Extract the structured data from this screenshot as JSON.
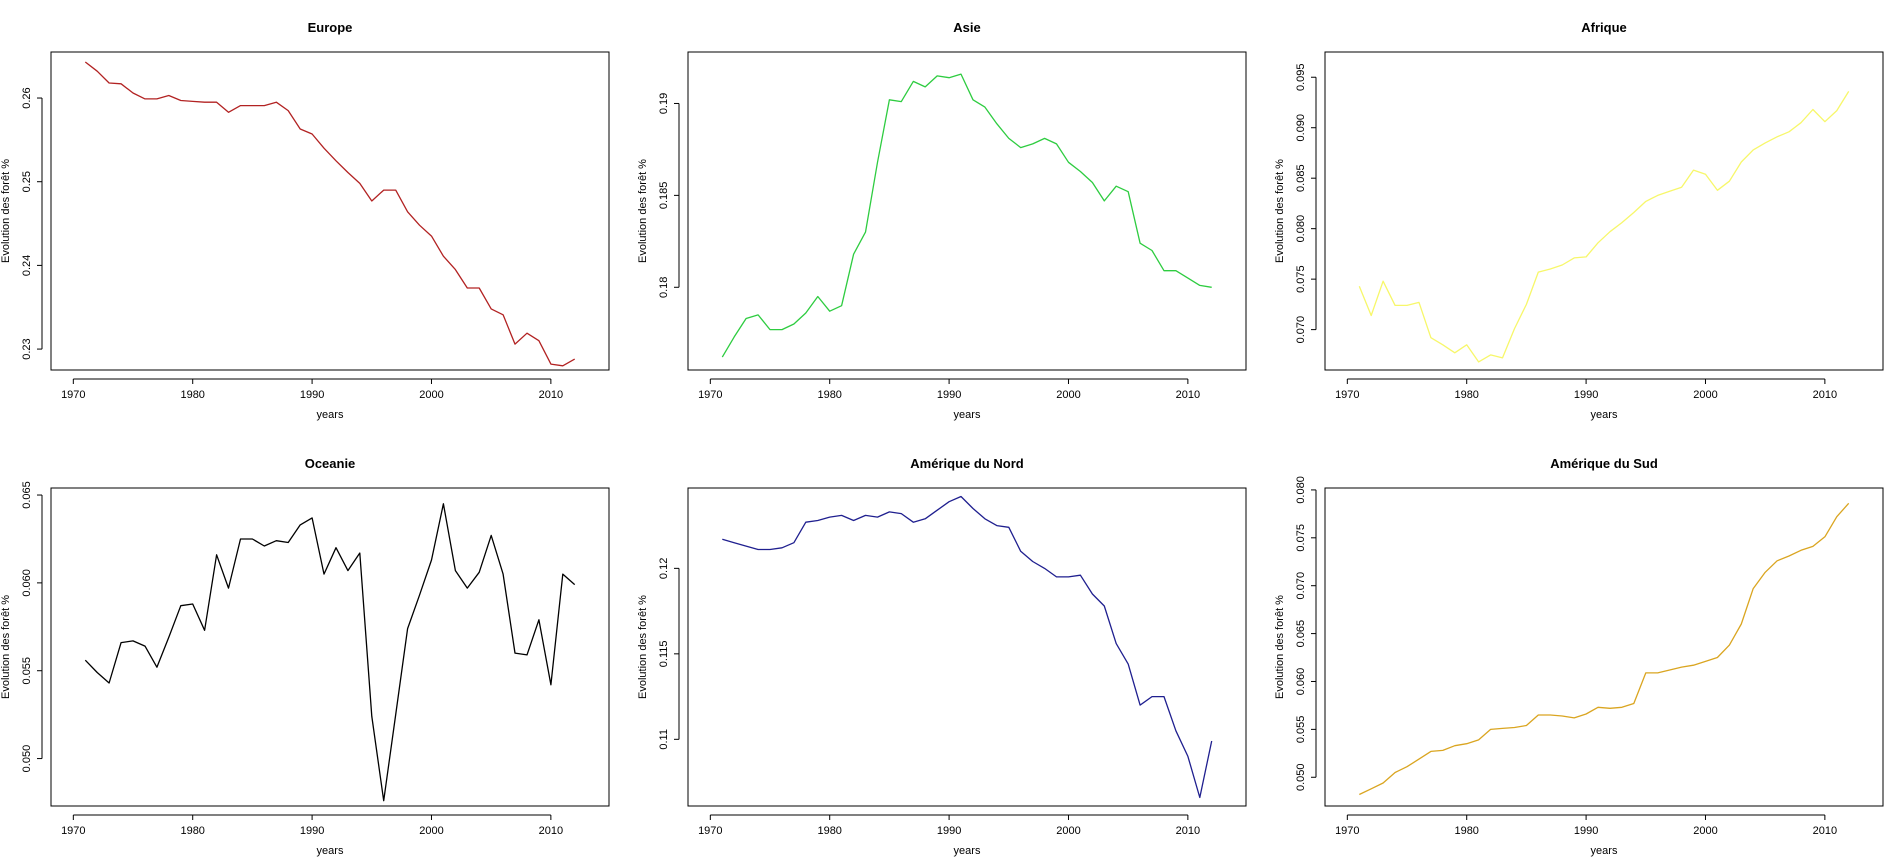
{
  "chart_data": [
    {
      "type": "line",
      "title": "Europe",
      "xlabel": "years",
      "ylabel": "Evolution des forêt %",
      "color": "#b22222",
      "xlim": [
        1970,
        2013
      ],
      "ylim": [
        0.2275,
        0.2655
      ],
      "x_ticks": [
        1970,
        1980,
        1990,
        2000,
        2010
      ],
      "y_ticks": [
        0.23,
        0.24,
        0.25,
        0.26
      ],
      "series": [
        {
          "x": [
            1971,
            1972,
            1973,
            1974,
            1975,
            1976,
            1977,
            1978,
            1979,
            1980,
            1981,
            1982,
            1983,
            1984,
            1985,
            1986,
            1987,
            1988,
            1989,
            1990,
            1991,
            1992,
            1993,
            1994,
            1995,
            1996,
            1997,
            1998,
            1999,
            2000,
            2001,
            2002,
            2003,
            2004,
            2005,
            2006,
            2007,
            2008,
            2009,
            2010,
            2011,
            2012
          ],
          "y": [
            0.2643,
            0.2632,
            0.2618,
            0.2617,
            0.2606,
            0.2599,
            0.2599,
            0.2603,
            0.2597,
            0.2596,
            0.2595,
            0.2595,
            0.2583,
            0.2591,
            0.2591,
            0.2591,
            0.2595,
            0.2585,
            0.2563,
            0.2557,
            0.254,
            0.2525,
            0.2511,
            0.2498,
            0.2477,
            0.249,
            0.249,
            0.2464,
            0.2448,
            0.2435,
            0.2411,
            0.2395,
            0.2373,
            0.2373,
            0.2348,
            0.2341,
            0.2306,
            0.2319,
            0.231,
            0.2282,
            0.228,
            0.2288
          ]
        }
      ]
    },
    {
      "type": "line",
      "title": "Asie",
      "xlabel": "years",
      "ylabel": "Evolution des forêt %",
      "color": "#2ecc40",
      "xlim": [
        1970,
        2013
      ],
      "ylim": [
        0.1755,
        0.1928
      ],
      "x_ticks": [
        1970,
        1980,
        1990,
        2000,
        2010
      ],
      "y_ticks": [
        0.18,
        0.185,
        0.19
      ],
      "series": [
        {
          "x": [
            1971,
            1972,
            1973,
            1974,
            1975,
            1976,
            1977,
            1978,
            1979,
            1980,
            1981,
            1982,
            1983,
            1984,
            1985,
            1986,
            1987,
            1988,
            1989,
            1990,
            1991,
            1992,
            1993,
            1994,
            1995,
            1996,
            1997,
            1998,
            1999,
            2000,
            2001,
            2002,
            2003,
            2004,
            2005,
            2006,
            2007,
            2008,
            2009,
            2010,
            2011,
            2012
          ],
          "y": [
            0.1762,
            0.1773,
            0.1783,
            0.1785,
            0.1777,
            0.1777,
            0.178,
            0.1786,
            0.1795,
            0.1787,
            0.179,
            0.1818,
            0.183,
            0.1868,
            0.1902,
            0.1901,
            0.1912,
            0.1909,
            0.1915,
            0.1914,
            0.1916,
            0.1902,
            0.1898,
            0.1889,
            0.1881,
            0.1876,
            0.1878,
            0.1881,
            0.1878,
            0.1868,
            0.1863,
            0.1857,
            0.1847,
            0.1855,
            0.1852,
            0.1824,
            0.182,
            0.1809,
            0.1809,
            0.1805,
            0.1801,
            0.18
          ]
        }
      ]
    },
    {
      "type": "line",
      "title": "Afrique",
      "xlabel": "years",
      "ylabel": "Evolution des forêt %",
      "color": "#f7f76a",
      "xlim": [
        1970,
        2013
      ],
      "ylim": [
        0.066,
        0.0975
      ],
      "x_ticks": [
        1970,
        1980,
        1990,
        2000,
        2010
      ],
      "y_ticks": [
        0.07,
        0.075,
        0.08,
        0.085,
        0.09,
        0.095
      ],
      "series": [
        {
          "x": [
            1971,
            1972,
            1973,
            1974,
            1975,
            1976,
            1977,
            1978,
            1979,
            1980,
            1981,
            1982,
            1983,
            1984,
            1985,
            1986,
            1987,
            1988,
            1989,
            1990,
            1991,
            1992,
            1993,
            1994,
            1995,
            1996,
            1997,
            1998,
            1999,
            2000,
            2001,
            2002,
            2003,
            2004,
            2005,
            2006,
            2007,
            2008,
            2009,
            2010,
            2011,
            2012
          ],
          "y": [
            0.0743,
            0.0714,
            0.0748,
            0.0724,
            0.0724,
            0.0727,
            0.0692,
            0.0685,
            0.0677,
            0.0685,
            0.0668,
            0.0675,
            0.0672,
            0.0701,
            0.0725,
            0.0757,
            0.076,
            0.0764,
            0.0771,
            0.0772,
            0.0786,
            0.0797,
            0.0806,
            0.0816,
            0.0827,
            0.0833,
            0.0837,
            0.0841,
            0.0858,
            0.0854,
            0.0838,
            0.0847,
            0.0866,
            0.0878,
            0.0885,
            0.0891,
            0.0896,
            0.0905,
            0.0918,
            0.0906,
            0.0917,
            0.0936
          ]
        }
      ]
    },
    {
      "type": "line",
      "title": "Oceanie",
      "xlabel": "years",
      "ylabel": "Evolution des forêt %",
      "color": "#000000",
      "xlim": [
        1970,
        2013
      ],
      "ylim": [
        0.0473,
        0.0654
      ],
      "x_ticks": [
        1970,
        1980,
        1990,
        2000,
        2010
      ],
      "y_ticks": [
        0.05,
        0.055,
        0.06,
        0.065
      ],
      "series": [
        {
          "x": [
            1971,
            1972,
            1973,
            1974,
            1975,
            1976,
            1977,
            1978,
            1979,
            1980,
            1981,
            1982,
            1983,
            1984,
            1985,
            1986,
            1987,
            1988,
            1989,
            1990,
            1991,
            1992,
            1993,
            1994,
            1995,
            1996,
            1997,
            1998,
            1999,
            2000,
            2001,
            2002,
            2003,
            2004,
            2005,
            2006,
            2007,
            2008,
            2009,
            2010,
            2011,
            2012
          ],
          "y": [
            0.0556,
            0.0549,
            0.0543,
            0.0566,
            0.0567,
            0.0564,
            0.0552,
            0.0569,
            0.0587,
            0.0588,
            0.0573,
            0.0616,
            0.0597,
            0.0625,
            0.0625,
            0.0621,
            0.0624,
            0.0623,
            0.0633,
            0.0637,
            0.0605,
            0.062,
            0.0607,
            0.0617,
            0.0524,
            0.0476,
            0.0525,
            0.0574,
            0.0593,
            0.0613,
            0.0645,
            0.0607,
            0.0597,
            0.0606,
            0.0627,
            0.0605,
            0.056,
            0.0559,
            0.0579,
            0.0542,
            0.0605,
            0.0599
          ]
        }
      ]
    },
    {
      "type": "line",
      "title": "Amérique du Nord",
      "xlabel": "years",
      "ylabel": "Evolution des forêt %",
      "color": "#1f1f8f",
      "xlim": [
        1970,
        2013
      ],
      "ylim": [
        0.1061,
        0.1247
      ],
      "x_ticks": [
        1970,
        1980,
        1990,
        2000,
        2010
      ],
      "y_ticks": [
        0.11,
        0.115,
        0.12
      ],
      "series": [
        {
          "x": [
            1971,
            1972,
            1973,
            1974,
            1975,
            1976,
            1977,
            1978,
            1979,
            1980,
            1981,
            1982,
            1983,
            1984,
            1985,
            1986,
            1987,
            1988,
            1989,
            1990,
            1991,
            1992,
            1993,
            1994,
            1995,
            1996,
            1997,
            1998,
            1999,
            2000,
            2001,
            2002,
            2003,
            2004,
            2005,
            2006,
            2007,
            2008,
            2009,
            2010,
            2011,
            2012
          ],
          "y": [
            0.1217,
            0.1215,
            0.1213,
            0.1211,
            0.1211,
            0.1212,
            0.1215,
            0.1227,
            0.1228,
            0.123,
            0.1231,
            0.1228,
            0.1231,
            0.123,
            0.1233,
            0.1232,
            0.1227,
            0.1229,
            0.1234,
            0.1239,
            0.1242,
            0.1235,
            0.1229,
            0.1225,
            0.1224,
            0.121,
            0.1204,
            0.12,
            0.1195,
            0.1195,
            0.1196,
            0.1185,
            0.1178,
            0.1156,
            0.1144,
            0.112,
            0.1125,
            0.1125,
            0.1105,
            0.109,
            0.1066,
            0.1099
          ]
        }
      ]
    },
    {
      "type": "line",
      "title": "Amérique du Sud",
      "xlabel": "years",
      "ylabel": "Evolution des forêt %",
      "color": "#daa520",
      "xlim": [
        1970,
        2013
      ],
      "ylim": [
        0.047,
        0.0802
      ],
      "x_ticks": [
        1970,
        1980,
        1990,
        2000,
        2010
      ],
      "y_ticks": [
        0.05,
        0.055,
        0.06,
        0.065,
        0.07,
        0.075,
        0.08
      ],
      "series": [
        {
          "x": [
            1971,
            1972,
            1973,
            1974,
            1975,
            1976,
            1977,
            1978,
            1979,
            1980,
            1981,
            1982,
            1983,
            1984,
            1985,
            1986,
            1987,
            1988,
            1989,
            1990,
            1991,
            1992,
            1993,
            1994,
            1995,
            1996,
            1997,
            1998,
            1999,
            2000,
            2001,
            2002,
            2003,
            2004,
            2005,
            2006,
            2007,
            2008,
            2009,
            2010,
            2011,
            2012
          ],
          "y": [
            0.0482,
            0.0488,
            0.0494,
            0.0505,
            0.0511,
            0.0519,
            0.0527,
            0.0528,
            0.0533,
            0.0535,
            0.0539,
            0.055,
            0.0551,
            0.0552,
            0.0554,
            0.0565,
            0.0565,
            0.0564,
            0.0562,
            0.0566,
            0.0573,
            0.0572,
            0.0573,
            0.0577,
            0.0609,
            0.0609,
            0.0612,
            0.0615,
            0.0617,
            0.0621,
            0.0625,
            0.0638,
            0.066,
            0.0697,
            0.0714,
            0.0726,
            0.0731,
            0.0737,
            0.0741,
            0.0751,
            0.0772,
            0.0786
          ]
        }
      ]
    }
  ]
}
